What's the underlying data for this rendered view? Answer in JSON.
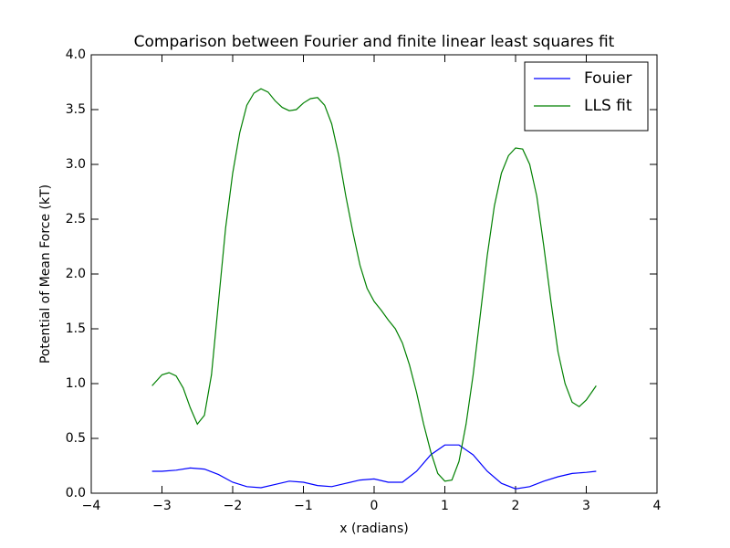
{
  "chart_data": {
    "type": "line",
    "title": "Comparison between Fourier and finite linear least squares fit",
    "x_label": "x (radians)",
    "y_label": "Potential of Mean Force (kT)",
    "xlim": [
      -4,
      4
    ],
    "ylim": [
      0,
      4
    ],
    "xticks": [
      {
        "value": -4,
        "label": "−4"
      },
      {
        "value": -3,
        "label": "−3"
      },
      {
        "value": -2,
        "label": "−2"
      },
      {
        "value": -1,
        "label": "−1"
      },
      0,
      1,
      2,
      3,
      4
    ],
    "yticks": [
      {
        "value": 0,
        "label": "0.0"
      },
      0.5,
      {
        "value": 1,
        "label": "1.0"
      },
      1.5,
      {
        "value": 2,
        "label": "2.0"
      },
      2.5,
      {
        "value": 3,
        "label": "3.0"
      },
      3.5,
      {
        "value": 4,
        "label": "4.0"
      }
    ],
    "legend": "upper right",
    "grid": false,
    "series": [
      {
        "name": "Fouier",
        "color": "#0000ff",
        "x": [
          -3.14,
          -3.0,
          -2.8,
          -2.6,
          -2.4,
          -2.2,
          -2.0,
          -1.8,
          -1.6,
          -1.4,
          -1.2,
          -1.0,
          -0.8,
          -0.6,
          -0.4,
          -0.2,
          0.0,
          0.2,
          0.4,
          0.6,
          0.8,
          1.0,
          1.2,
          1.4,
          1.6,
          1.8,
          2.0,
          2.2,
          2.4,
          2.6,
          2.8,
          3.0,
          3.14
        ],
        "values": [
          0.2,
          0.2,
          0.21,
          0.23,
          0.22,
          0.17,
          0.1,
          0.06,
          0.05,
          0.08,
          0.11,
          0.1,
          0.07,
          0.06,
          0.09,
          0.12,
          0.13,
          0.1,
          0.1,
          0.2,
          0.35,
          0.44,
          0.44,
          0.35,
          0.2,
          0.09,
          0.04,
          0.06,
          0.11,
          0.15,
          0.18,
          0.19,
          0.2
        ]
      },
      {
        "name": "LLS fit",
        "color": "#008000",
        "x": [
          -3.14,
          -3.0,
          -2.9,
          -2.8,
          -2.7,
          -2.6,
          -2.5,
          -2.4,
          -2.3,
          -2.2,
          -2.1,
          -2.0,
          -1.9,
          -1.8,
          -1.7,
          -1.6,
          -1.5,
          -1.4,
          -1.3,
          -1.2,
          -1.1,
          -1.0,
          -0.9,
          -0.8,
          -0.7,
          -0.6,
          -0.5,
          -0.4,
          -0.3,
          -0.2,
          -0.1,
          0.0,
          0.1,
          0.2,
          0.3,
          0.4,
          0.5,
          0.6,
          0.7,
          0.8,
          0.9,
          1.0,
          1.1,
          1.2,
          1.3,
          1.4,
          1.5,
          1.6,
          1.7,
          1.8,
          1.9,
          2.0,
          2.1,
          2.2,
          2.3,
          2.4,
          2.5,
          2.6,
          2.7,
          2.8,
          2.9,
          3.0,
          3.14
        ],
        "values": [
          0.98,
          1.08,
          1.1,
          1.07,
          0.96,
          0.78,
          0.63,
          0.71,
          1.08,
          1.75,
          2.42,
          2.92,
          3.29,
          3.54,
          3.65,
          3.69,
          3.66,
          3.58,
          3.52,
          3.49,
          3.5,
          3.56,
          3.6,
          3.61,
          3.54,
          3.37,
          3.08,
          2.71,
          2.38,
          2.08,
          1.87,
          1.75,
          1.67,
          1.58,
          1.5,
          1.37,
          1.17,
          0.92,
          0.63,
          0.38,
          0.18,
          0.11,
          0.12,
          0.29,
          0.63,
          1.08,
          1.62,
          2.17,
          2.62,
          2.92,
          3.08,
          3.15,
          3.14,
          3.0,
          2.71,
          2.25,
          1.75,
          1.29,
          1.0,
          0.83,
          0.79,
          0.85,
          0.98
        ]
      }
    ]
  }
}
